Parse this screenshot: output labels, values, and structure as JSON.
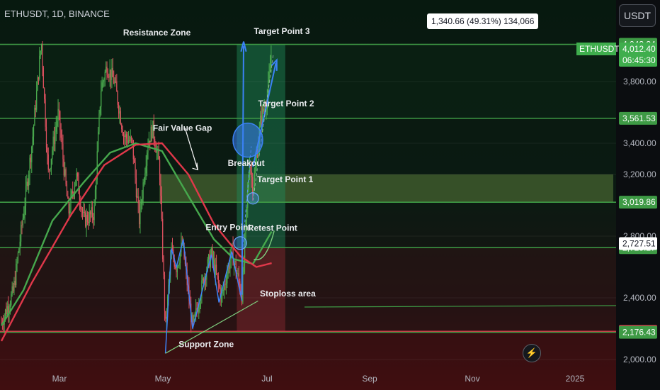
{
  "header": {
    "symbol_line": "ETHUSDT, 1D, BINANCE",
    "currency_button": "USDT",
    "measure_label": "1,340.66 (49.31%) 134,066"
  },
  "chart_data": {
    "type": "candlestick",
    "symbol": "ETHUSDT",
    "interval": "1D",
    "exchange": "BINANCE",
    "x_ticks": [
      "Mar",
      "May",
      "Jul",
      "Sep",
      "Nov",
      "2025"
    ],
    "y_ticks": [
      2000,
      2400,
      2800,
      3200,
      3400,
      3800
    ],
    "y_tick_labels": [
      "2,000.00",
      "2,400.00",
      "2,800.00",
      "3,200.00",
      "3,400.00",
      "3,800.00"
    ],
    "ylim": [
      1960,
      4140
    ],
    "price_levels": [
      {
        "value": 4042.24,
        "label": "4,042.24",
        "color": "#3e9a45"
      },
      {
        "value": 3561.53,
        "label": "3,561.53",
        "color": "#3e9a45"
      },
      {
        "value": 3019.86,
        "label": "3,019.86",
        "color": "#3e9a45"
      },
      {
        "value": 2725.27,
        "label": "2,725.27",
        "color": "#3e9a45"
      },
      {
        "value": 2182.75,
        "label": "2,182.75",
        "color": "#d13a4a"
      },
      {
        "value": 2176.43,
        "label": "2,176.43",
        "color": "#3e9a45"
      }
    ],
    "current_price": {
      "symbol_tag": "ETHUSDT",
      "price": "4,012.40",
      "countdown": "06:45:30"
    },
    "crosshair_price": "2,727.51",
    "price_path": [
      {
        "x": "2024-01-25",
        "y": 2240
      },
      {
        "x": "2024-02-08",
        "y": 2440
      },
      {
        "x": "2024-02-20",
        "y": 2950
      },
      {
        "x": "2024-03-01",
        "y": 3400
      },
      {
        "x": "2024-03-12",
        "y": 4060
      },
      {
        "x": "2024-03-20",
        "y": 3200
      },
      {
        "x": "2024-04-01",
        "y": 3600
      },
      {
        "x": "2024-04-13",
        "y": 2950
      },
      {
        "x": "2024-04-22",
        "y": 3200
      },
      {
        "x": "2024-05-01",
        "y": 2900
      },
      {
        "x": "2024-05-13",
        "y": 2950
      },
      {
        "x": "2024-05-21",
        "y": 3750
      },
      {
        "x": "2024-05-28",
        "y": 3900
      },
      {
        "x": "2024-06-06",
        "y": 3800
      },
      {
        "x": "2024-06-17",
        "y": 3450
      },
      {
        "x": "2024-06-27",
        "y": 3400
      },
      {
        "x": "2024-07-05",
        "y": 2900
      },
      {
        "x": "2024-07-15",
        "y": 3400
      },
      {
        "x": "2024-07-21",
        "y": 3500
      },
      {
        "x": "2024-07-29",
        "y": 3250
      },
      {
        "x": "2024-08-05",
        "y": 2200
      },
      {
        "x": "2024-08-12",
        "y": 2700
      },
      {
        "x": "2024-08-18",
        "y": 2600
      },
      {
        "x": "2024-08-25",
        "y": 2750
      },
      {
        "x": "2024-09-06",
        "y": 2200
      },
      {
        "x": "2024-09-20",
        "y": 2550
      },
      {
        "x": "2024-09-28",
        "y": 2680
      },
      {
        "x": "2024-10-10",
        "y": 2400
      },
      {
        "x": "2024-10-22",
        "y": 2700
      },
      {
        "x": "2024-11-03",
        "y": 2420
      },
      {
        "x": "2024-11-06",
        "y": 2700
      },
      {
        "x": "2024-11-12",
        "y": 3300
      },
      {
        "x": "2024-11-16",
        "y": 3100
      },
      {
        "x": "2024-11-25",
        "y": 3550
      },
      {
        "x": "2024-12-03",
        "y": 3700
      },
      {
        "x": "2024-12-08",
        "y": 4012
      }
    ],
    "ma_green": [
      {
        "x": "2024-01-25",
        "y": 2220
      },
      {
        "x": "2024-02-20",
        "y": 2450
      },
      {
        "x": "2024-03-25",
        "y": 2900
      },
      {
        "x": "2024-05-01",
        "y": 3150
      },
      {
        "x": "2024-06-01",
        "y": 3340
      },
      {
        "x": "2024-07-01",
        "y": 3400
      },
      {
        "x": "2024-08-01",
        "y": 3350
      },
      {
        "x": "2024-09-01",
        "y": 3060
      },
      {
        "x": "2024-10-01",
        "y": 2780
      },
      {
        "x": "2024-10-25",
        "y": 2650
      },
      {
        "x": "2024-11-16",
        "y": 2620
      },
      {
        "x": "2024-12-08",
        "y": 2830
      }
    ],
    "ma_red": [
      {
        "x": "2024-01-25",
        "y": 2120
      },
      {
        "x": "2024-03-01",
        "y": 2500
      },
      {
        "x": "2024-04-15",
        "y": 2930
      },
      {
        "x": "2024-05-25",
        "y": 3260
      },
      {
        "x": "2024-07-01",
        "y": 3390
      },
      {
        "x": "2024-08-01",
        "y": 3400
      },
      {
        "x": "2024-09-01",
        "y": 3200
      },
      {
        "x": "2024-10-01",
        "y": 2880
      },
      {
        "x": "2024-11-01",
        "y": 2670
      },
      {
        "x": "2024-11-20",
        "y": 2600
      },
      {
        "x": "2024-12-08",
        "y": 2625
      }
    ],
    "annotations": [
      {
        "text": "Resistance Zone",
        "x": "2024-07-26",
        "y": 4100
      },
      {
        "text": "Target Point 3",
        "x": "2024-12-20",
        "y": 4110
      },
      {
        "text": "Target Point 2",
        "x": "2024-12-25",
        "y": 3640
      },
      {
        "text": "Fair Value Gap",
        "x": "2024-08-25",
        "y": 3480
      },
      {
        "text": "Breakout",
        "x": "2024-11-08",
        "y": 3255
      },
      {
        "text": "Target Point 1",
        "x": "2024-12-24",
        "y": 3150
      },
      {
        "text": "Entry Point",
        "x": "2024-10-18",
        "y": 2840
      },
      {
        "text": "Retest Point",
        "x": "2024-12-09",
        "y": 2835
      },
      {
        "text": "Stoploss area",
        "x": "2024-12-27",
        "y": 2410
      },
      {
        "text": "Support Zone",
        "x": "2024-09-22",
        "y": 2080
      }
    ]
  }
}
